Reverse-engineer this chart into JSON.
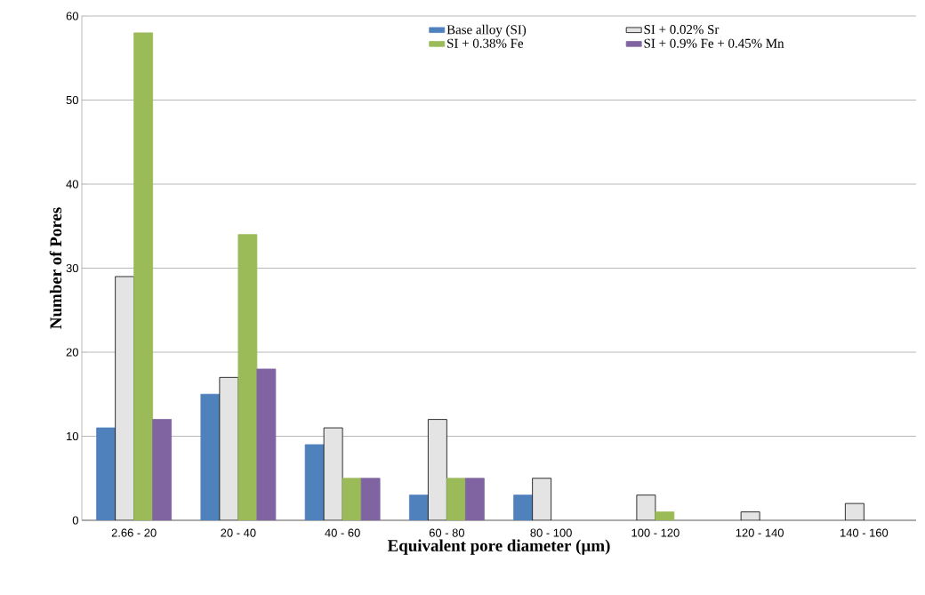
{
  "chart_data": {
    "type": "bar",
    "xlabel": "Equivalent  pore diameter (µm)",
    "ylabel": "Number  of Pores",
    "categories": [
      "2.66 - 20",
      "20 - 40",
      "40 - 60",
      "60 - 80",
      "80 - 100",
      "100 - 120",
      "120 - 140",
      "140 - 160"
    ],
    "series": [
      {
        "name": "Base alloy (SI)",
        "color": "#4f81bd",
        "values": [
          11,
          15,
          9,
          3,
          3,
          null,
          null,
          null
        ]
      },
      {
        "name": "SI + 0.02% Sr",
        "color": "#e4e4e4",
        "values": [
          29,
          17,
          11,
          12,
          5,
          3,
          1,
          2
        ]
      },
      {
        "name": "SI + 0.38% Fe",
        "color": "#9bbb59",
        "values": [
          58,
          34,
          5,
          5,
          null,
          1,
          null,
          null
        ]
      },
      {
        "name": "SI + 0.9% Fe + 0.45% Mn",
        "color": "#8064a2",
        "values": [
          12,
          18,
          5,
          5,
          null,
          null,
          null,
          null
        ]
      }
    ],
    "ylim": [
      0,
      60
    ],
    "yticks": [
      0,
      10,
      20,
      30,
      40,
      50,
      60
    ],
    "grid": "y",
    "legend": "top"
  }
}
